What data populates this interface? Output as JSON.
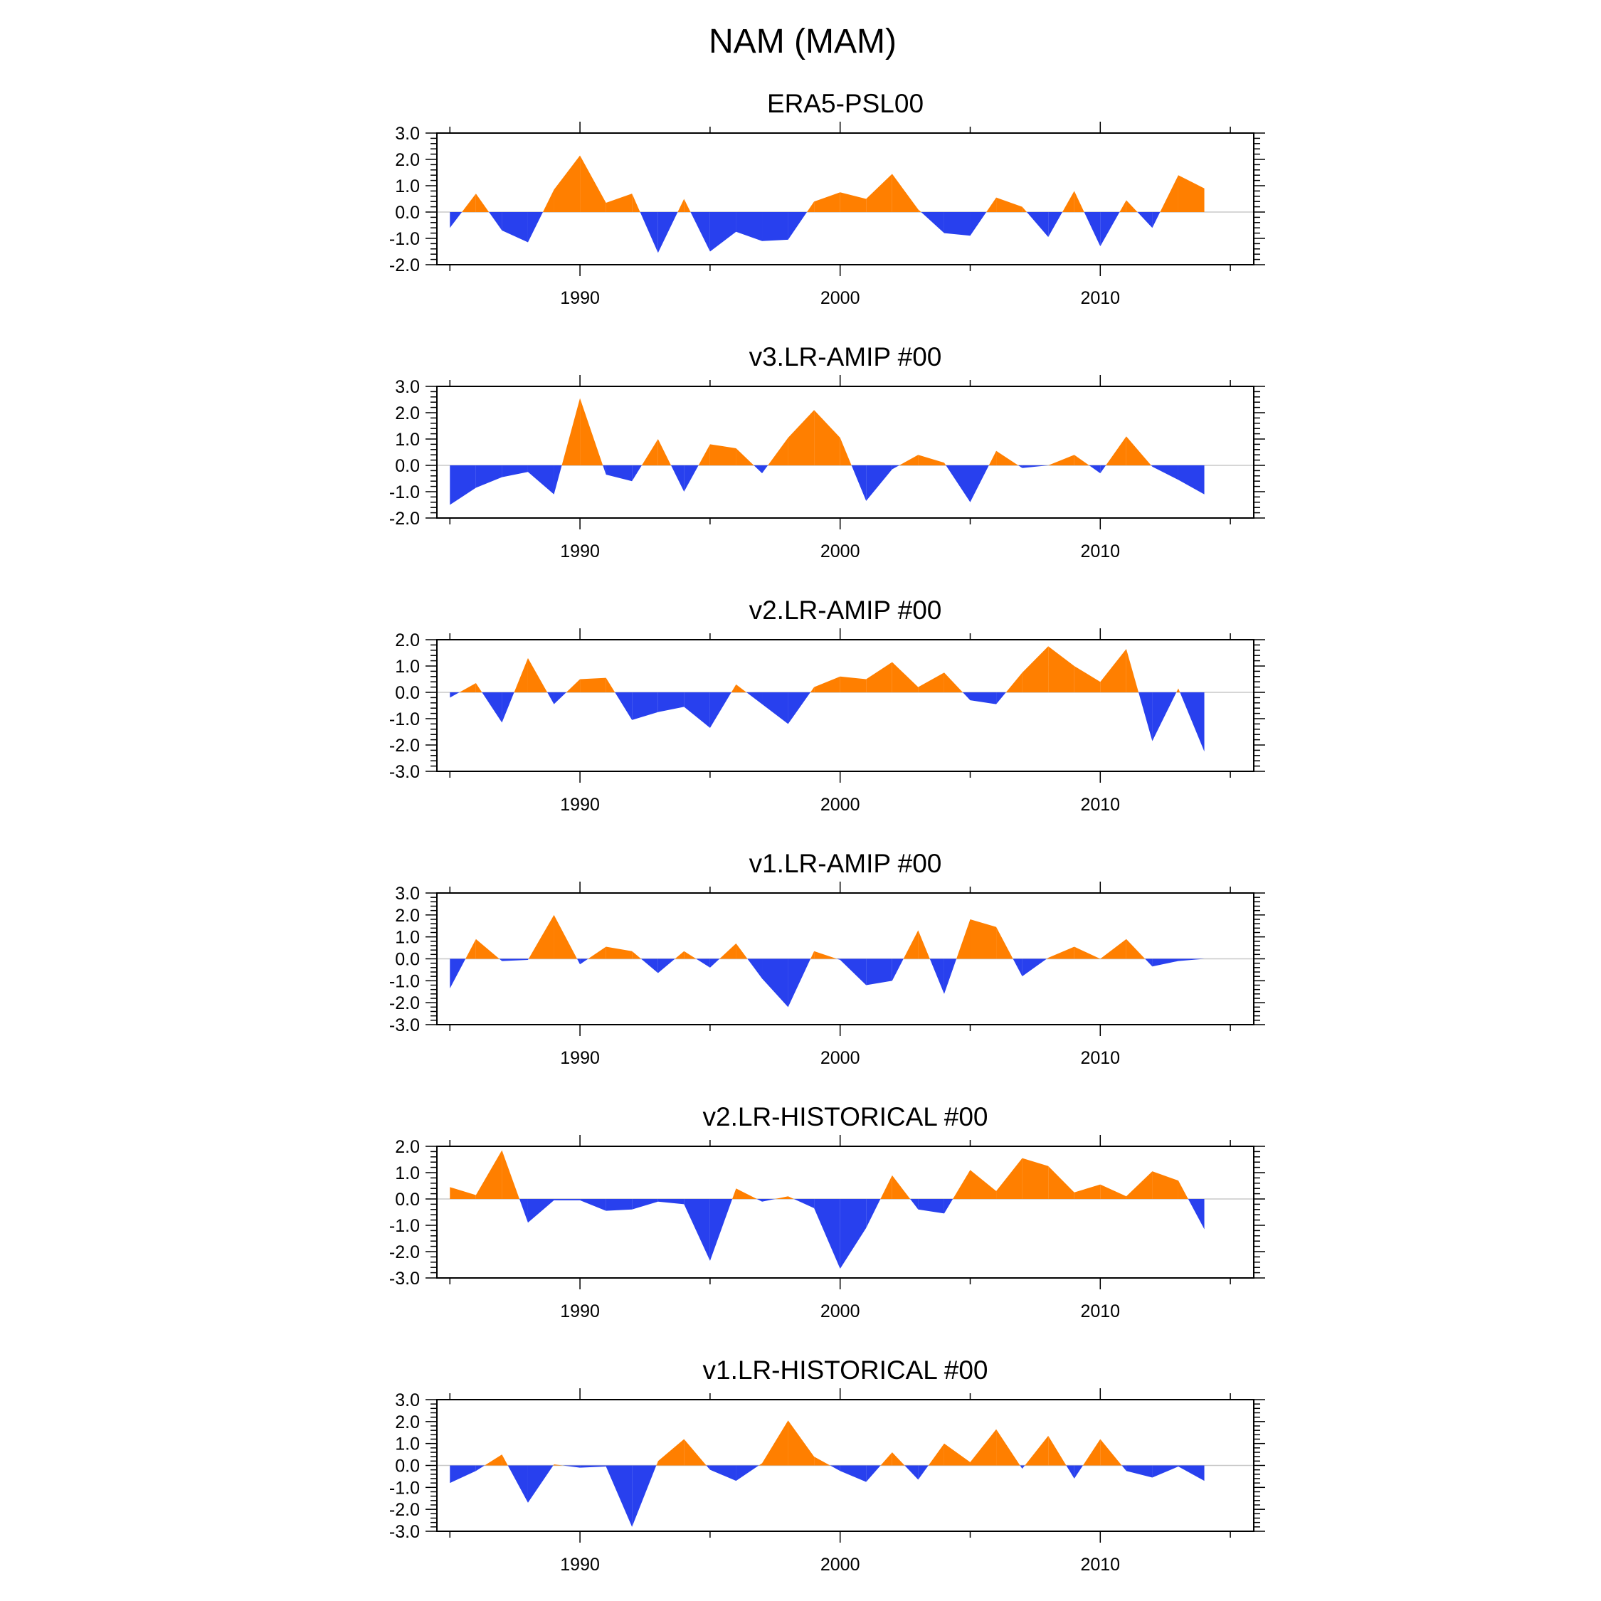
{
  "title": "NAM (MAM)",
  "colors": {
    "positive": "#ff7f00",
    "negative": "#2840ee",
    "frame": "#000000",
    "zero_line": "#c8c8c8"
  },
  "chart_data": [
    {
      "type": "area",
      "title": "ERA5-PSL00",
      "ylim": [
        -2,
        3
      ],
      "y_ticks": [
        "3.0",
        "2.0",
        "1.0",
        "0.0",
        "-1.0",
        "-2.0"
      ],
      "y_tick_values": [
        3,
        2,
        1,
        0,
        -1,
        -2
      ],
      "x_ticks": [
        "1990",
        "2000",
        "2010"
      ],
      "x_tick_values": [
        1990,
        2000,
        2010
      ],
      "x": [
        1985,
        1986,
        1987,
        1988,
        1989,
        1990,
        1991,
        1992,
        1993,
        1994,
        1995,
        1996,
        1997,
        1998,
        1999,
        2000,
        2001,
        2002,
        2003,
        2004,
        2005,
        2006,
        2007,
        2008,
        2009,
        2010,
        2011,
        2012,
        2013,
        2014
      ],
      "values": [
        -0.6,
        0.7,
        -0.7,
        -1.15,
        0.85,
        2.15,
        0.35,
        0.7,
        -1.55,
        0.5,
        -1.5,
        -0.75,
        -1.1,
        -1.05,
        0.4,
        0.75,
        0.5,
        1.45,
        0.1,
        -0.8,
        -0.9,
        0.55,
        0.2,
        -0.95,
        0.8,
        -1.3,
        0.45,
        -0.6,
        1.4,
        0.9
      ]
    },
    {
      "type": "area",
      "title": "v3.LR-AMIP  #00",
      "ylim": [
        -2,
        3
      ],
      "y_ticks": [
        "3.0",
        "2.0",
        "1.0",
        "0.0",
        "-1.0",
        "-2.0"
      ],
      "y_tick_values": [
        3,
        2,
        1,
        0,
        -1,
        -2
      ],
      "x_ticks": [
        "1990",
        "2000",
        "2010"
      ],
      "x_tick_values": [
        1990,
        2000,
        2010
      ],
      "x": [
        1985,
        1986,
        1987,
        1988,
        1989,
        1990,
        1991,
        1992,
        1993,
        1994,
        1995,
        1996,
        1997,
        1998,
        1999,
        2000,
        2001,
        2002,
        2003,
        2004,
        2005,
        2006,
        2007,
        2008,
        2009,
        2010,
        2011,
        2012,
        2013,
        2014
      ],
      "values": [
        -1.5,
        -0.85,
        -0.45,
        -0.25,
        -1.1,
        2.55,
        -0.35,
        -0.6,
        1.0,
        -1.0,
        0.8,
        0.65,
        -0.3,
        1.05,
        2.1,
        1.05,
        -1.35,
        -0.15,
        0.4,
        0.1,
        -1.4,
        0.55,
        -0.1,
        0.0,
        0.4,
        -0.3,
        1.1,
        -0.05,
        -0.55,
        -1.1
      ]
    },
    {
      "type": "area",
      "title": "v2.LR-AMIP  #00",
      "ylim": [
        -3,
        2
      ],
      "y_ticks": [
        "2.0",
        "1.0",
        "0.0",
        "-1.0",
        "-2.0",
        "-3.0"
      ],
      "y_tick_values": [
        2,
        1,
        0,
        -1,
        -2,
        -3
      ],
      "x_ticks": [
        "1990",
        "2000",
        "2010"
      ],
      "x_tick_values": [
        1990,
        2000,
        2010
      ],
      "x": [
        1985,
        1986,
        1987,
        1988,
        1989,
        1990,
        1991,
        1992,
        1993,
        1994,
        1995,
        1996,
        1997,
        1998,
        1999,
        2000,
        2001,
        2002,
        2003,
        2004,
        2005,
        2006,
        2007,
        2008,
        2009,
        2010,
        2011,
        2012,
        2013,
        2014
      ],
      "values": [
        -0.2,
        0.35,
        -1.15,
        1.3,
        -0.45,
        0.5,
        0.55,
        -1.05,
        -0.75,
        -0.55,
        -1.35,
        0.3,
        -0.45,
        -1.2,
        0.2,
        0.6,
        0.5,
        1.15,
        0.2,
        0.75,
        -0.3,
        -0.45,
        0.75,
        1.75,
        1.0,
        0.4,
        1.65,
        -1.85,
        0.15,
        -2.25
      ]
    },
    {
      "type": "area",
      "title": "v1.LR-AMIP  #00",
      "ylim": [
        -3,
        3
      ],
      "y_ticks": [
        "3.0",
        "2.0",
        "1.0",
        "0.0",
        "-1.0",
        "-2.0",
        "-3.0"
      ],
      "y_tick_values": [
        3,
        2,
        1,
        0,
        -1,
        -2,
        -3
      ],
      "x_ticks": [
        "1990",
        "2000",
        "2010"
      ],
      "x_tick_values": [
        1990,
        2000,
        2010
      ],
      "x": [
        1985,
        1986,
        1987,
        1988,
        1989,
        1990,
        1991,
        1992,
        1993,
        1994,
        1995,
        1996,
        1997,
        1998,
        1999,
        2000,
        2001,
        2002,
        2003,
        2004,
        2005,
        2006,
        2007,
        2008,
        2009,
        2010,
        2011,
        2012,
        2013,
        2014
      ],
      "values": [
        -1.35,
        0.9,
        -0.1,
        -0.05,
        2.0,
        -0.25,
        0.55,
        0.35,
        -0.65,
        0.35,
        -0.4,
        0.7,
        -0.9,
        -2.2,
        0.35,
        -0.05,
        -1.2,
        -1.0,
        1.3,
        -1.6,
        1.8,
        1.45,
        -0.8,
        0.05,
        0.55,
        0.0,
        0.9,
        -0.35,
        -0.1,
        0.0
      ]
    },
    {
      "type": "area",
      "title": "v2.LR-HISTORICAL  #00",
      "ylim": [
        -3,
        2
      ],
      "y_ticks": [
        "2.0",
        "1.0",
        "0.0",
        "-1.0",
        "-2.0",
        "-3.0"
      ],
      "y_tick_values": [
        2,
        1,
        0,
        -1,
        -2,
        -3
      ],
      "x_ticks": [
        "1990",
        "2000",
        "2010"
      ],
      "x_tick_values": [
        1990,
        2000,
        2010
      ],
      "x": [
        1985,
        1986,
        1987,
        1988,
        1989,
        1990,
        1991,
        1992,
        1993,
        1994,
        1995,
        1996,
        1997,
        1998,
        1999,
        2000,
        2001,
        2002,
        2003,
        2004,
        2005,
        2006,
        2007,
        2008,
        2009,
        2010,
        2011,
        2012,
        2013,
        2014
      ],
      "values": [
        0.45,
        0.15,
        1.85,
        -0.9,
        -0.05,
        -0.05,
        -0.45,
        -0.4,
        -0.1,
        -0.2,
        -2.35,
        0.4,
        -0.1,
        0.1,
        -0.35,
        -2.65,
        -1.1,
        0.9,
        -0.4,
        -0.55,
        1.1,
        0.3,
        1.55,
        1.25,
        0.25,
        0.55,
        0.1,
        1.05,
        0.7,
        -1.15
      ]
    },
    {
      "type": "area",
      "title": "v1.LR-HISTORICAL  #00",
      "ylim": [
        -3,
        3
      ],
      "y_ticks": [
        "3.0",
        "2.0",
        "1.0",
        "0.0",
        "-1.0",
        "-2.0",
        "-3.0"
      ],
      "y_tick_values": [
        3,
        2,
        1,
        0,
        -1,
        -2,
        -3
      ],
      "x_ticks": [
        "1990",
        "2000",
        "2010"
      ],
      "x_tick_values": [
        1990,
        2000,
        2010
      ],
      "x": [
        1985,
        1986,
        1987,
        1988,
        1989,
        1990,
        1991,
        1992,
        1993,
        1994,
        1995,
        1996,
        1997,
        1998,
        1999,
        2000,
        2001,
        2002,
        2003,
        2004,
        2005,
        2006,
        2007,
        2008,
        2009,
        2010,
        2011,
        2012,
        2013,
        2014
      ],
      "values": [
        -0.8,
        -0.25,
        0.5,
        -1.7,
        0.05,
        -0.1,
        -0.05,
        -2.8,
        0.2,
        1.2,
        -0.2,
        -0.7,
        0.1,
        2.05,
        0.4,
        -0.25,
        -0.75,
        0.6,
        -0.65,
        1.0,
        0.15,
        1.65,
        -0.15,
        1.35,
        -0.6,
        1.2,
        -0.25,
        -0.55,
        -0.05,
        -0.7
      ]
    }
  ]
}
